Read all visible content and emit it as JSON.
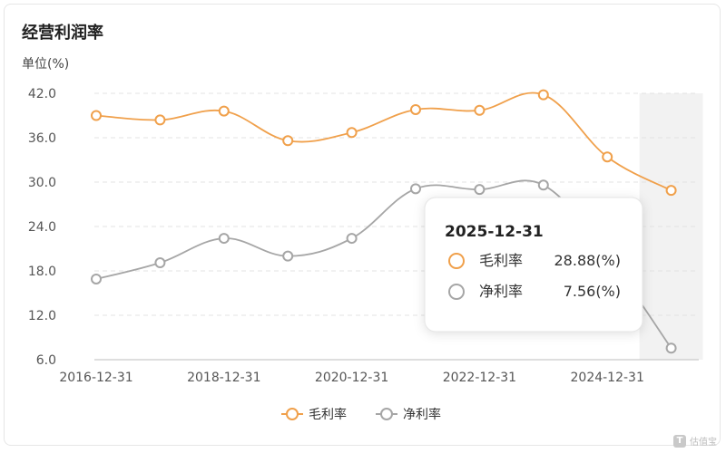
{
  "title": "经营利润率",
  "unit_label": "单位(%)",
  "chart_data": {
    "type": "line",
    "x": [
      "2016-12-31",
      "2017-12-31",
      "2018-12-31",
      "2019-12-31",
      "2020-12-31",
      "2021-12-31",
      "2022-12-31",
      "2023-12-31",
      "2024-12-31",
      "2025-12-31"
    ],
    "x_tick_labels": [
      "2016-12-31",
      "2018-12-31",
      "2020-12-31",
      "2022-12-31",
      "2024-12-31"
    ],
    "y_ticks": [
      "42.0",
      "36.0",
      "30.0",
      "24.0",
      "18.0",
      "12.0",
      "6.0"
    ],
    "ylim": [
      6,
      42
    ],
    "grid": true,
    "highlight_last_period": true,
    "series": [
      {
        "name": "毛利率",
        "color": "#f0a04b",
        "values": [
          39.0,
          38.4,
          39.6,
          35.6,
          36.7,
          39.8,
          39.7,
          41.8,
          33.4,
          28.88
        ]
      },
      {
        "name": "净利率",
        "color": "#a6a6a6",
        "values": [
          16.9,
          19.1,
          22.4,
          20.0,
          22.4,
          29.1,
          29.0,
          29.6,
          20.0,
          7.56
        ]
      }
    ],
    "legend_position": "bottom"
  },
  "tooltip": {
    "date": "2025-12-31",
    "rows": [
      {
        "name": "毛利率",
        "value": "28.88(%)"
      },
      {
        "name": "净利率",
        "value": "7.56(%)"
      }
    ]
  },
  "watermark": {
    "text": "估值宝",
    "mark": "T"
  }
}
